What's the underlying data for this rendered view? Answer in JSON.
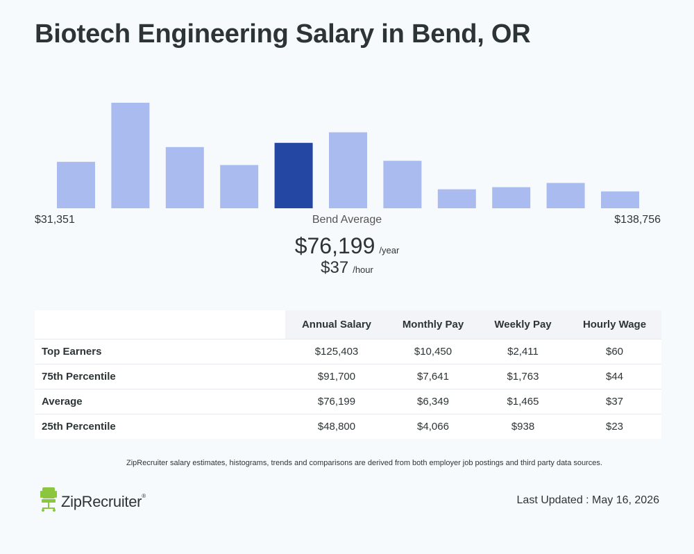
{
  "header": {
    "title": "Biotech Engineering Salary in Bend, OR"
  },
  "histogram": {
    "bars": [
      {
        "relative_height": 0.44,
        "highlighted": false
      },
      {
        "relative_height": 1.0,
        "highlighted": false
      },
      {
        "relative_height": 0.58,
        "highlighted": false
      },
      {
        "relative_height": 0.41,
        "highlighted": false
      },
      {
        "relative_height": 0.62,
        "highlighted": true
      },
      {
        "relative_height": 0.72,
        "highlighted": false
      },
      {
        "relative_height": 0.45,
        "highlighted": false
      },
      {
        "relative_height": 0.18,
        "highlighted": false
      },
      {
        "relative_height": 0.2,
        "highlighted": false
      },
      {
        "relative_height": 0.24,
        "highlighted": false
      },
      {
        "relative_height": 0.16,
        "highlighted": false
      }
    ],
    "range_min": "$31,351",
    "range_max": "$138,756",
    "colors": {
      "bar": "#aabbf0",
      "highlight": "#2547a4"
    }
  },
  "average": {
    "label": "Bend Average",
    "yearly": "$76,199",
    "yearly_unit": "/year",
    "hourly": "$37",
    "hourly_unit": "/hour"
  },
  "table": {
    "headers": [
      "",
      "Annual Salary",
      "Monthly Pay",
      "Weekly Pay",
      "Hourly Wage"
    ],
    "rows": [
      {
        "label": "Top Earners",
        "values": [
          "$125,403",
          "$10,450",
          "$2,411",
          "$60"
        ]
      },
      {
        "label": "75th Percentile",
        "values": [
          "$91,700",
          "$7,641",
          "$1,763",
          "$44"
        ]
      },
      {
        "label": "Average",
        "values": [
          "$76,199",
          "$6,349",
          "$1,465",
          "$37"
        ]
      },
      {
        "label": "25th Percentile",
        "values": [
          "$48,800",
          "$4,066",
          "$938",
          "$23"
        ]
      }
    ]
  },
  "footer": {
    "note": "ZipRecruiter salary estimates, histograms, trends and comparisons are derived from both employer job postings and third party data sources.",
    "logo_text": "ZipRecruiter",
    "logo_mark": "®",
    "updated": "Last Updated : May 16, 2026",
    "logo_color": "#8bc63f"
  }
}
